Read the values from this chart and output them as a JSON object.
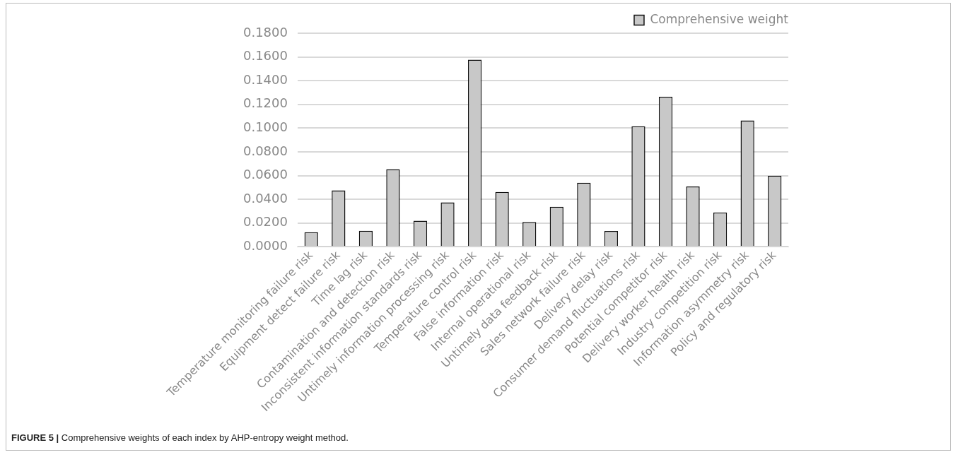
{
  "chart_data": {
    "type": "bar",
    "categories": [
      "Temperature monitoring failure risk",
      "Equipment detect failure risk",
      "Time lag risk",
      "Contamination and detection risk",
      "Inconsistent information standards risk",
      "Untimely information processing risk",
      "Temperature control risk",
      "False information risk",
      "Internal operational risk",
      "Untimely data feedback risk",
      "Sales network failure risk",
      "Delivery delay risk",
      "Consumer demand fluctuations risk",
      "Potential competitor risk",
      "Delivery worker health risk",
      "Industry competition risk",
      "Information asymmetry risk",
      "Policy and regulatory risk"
    ],
    "series": [
      {
        "name": "Comprehensive weight",
        "color": "#c8c8c8",
        "values": [
          0.0122,
          0.0475,
          0.0134,
          0.0654,
          0.0219,
          0.0374,
          0.1576,
          0.0461,
          0.0209,
          0.0336,
          0.0539,
          0.0132,
          0.1016,
          0.1264,
          0.0508,
          0.0289,
          0.1064,
          0.0598
        ]
      }
    ],
    "ylim": [
      0,
      0.18
    ],
    "yticks": [
      {
        "value": 0,
        "label": "0.0000"
      },
      {
        "value": 0.02,
        "label": "0.0200"
      },
      {
        "value": 0.04,
        "label": "0.0400"
      },
      {
        "value": 0.06,
        "label": "0.0600"
      },
      {
        "value": 0.08,
        "label": "0.0800"
      },
      {
        "value": 0.1,
        "label": "0.1000"
      },
      {
        "value": 0.12,
        "label": "0.1200"
      },
      {
        "value": 0.14,
        "label": "0.1400"
      },
      {
        "value": 0.16,
        "label": "0.1600"
      },
      {
        "value": 0.18,
        "label": "0.1800"
      }
    ],
    "grid": "y",
    "legend": "top right",
    "annotations": [
      "FIGURE 5 | Comprehensive weights of each index by AHP-entropy weight method."
    ]
  }
}
